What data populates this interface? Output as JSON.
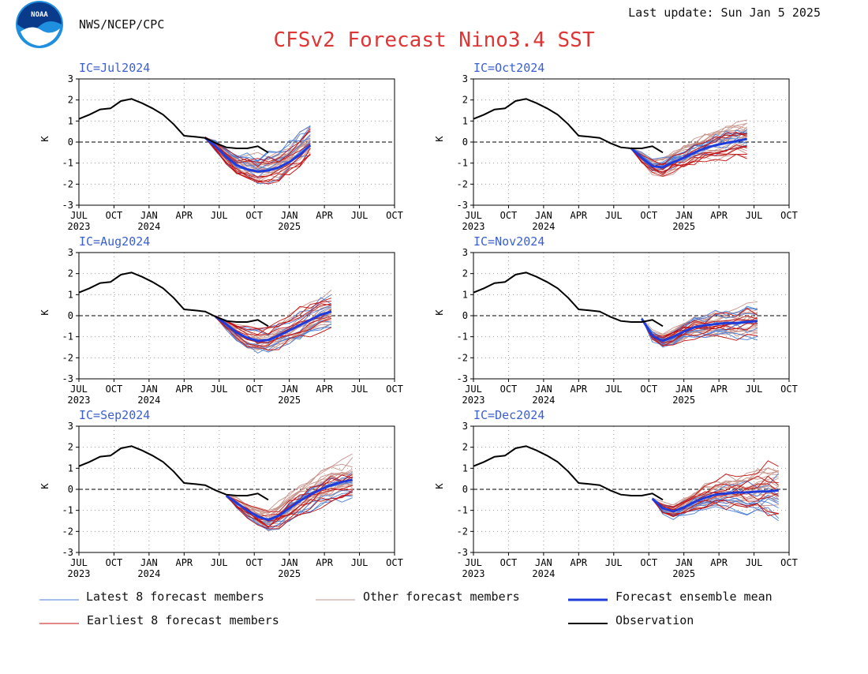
{
  "header": {
    "agency": "NWS/NCEP/CPC",
    "logo_text": "NOAA",
    "last_update": "Last update: Sun Jan 5 2025",
    "title": "CFSv2 Forecast Nino3.4 SST"
  },
  "colors": {
    "title": "#e03535",
    "ic_label": "#3a5fd0",
    "latest": "#4a7fd8",
    "other": "#c8948a",
    "earliest": "#c41010",
    "mean": "#1e3cdc",
    "observation": "#000000",
    "logo_blue": "#1f8fe0",
    "logo_dark": "#0a3a8a"
  },
  "legend": {
    "latest": "Latest 8 forecast members",
    "other": "Other forecast members",
    "mean": "Forecast ensemble mean",
    "earliest": "Earliest 8 forecast members",
    "observation": "Observation"
  },
  "chart_data": [
    {
      "type": "line",
      "ic_label": "IC=Jul2024",
      "ylabel": "K",
      "ylim": [
        -3,
        3
      ],
      "yticks": [
        "3",
        "2",
        "1",
        "0",
        "-1",
        "-2",
        "-3"
      ],
      "xticks": [
        "JUL",
        "OCT",
        "JAN",
        "APR",
        "JUL",
        "OCT",
        "JAN",
        "APR",
        "JUL",
        "OCT"
      ],
      "xyears": [
        {
          "index": 0,
          "label": "2023"
        },
        {
          "index": 2,
          "label": "2024"
        },
        {
          "index": 6,
          "label": "2025"
        }
      ],
      "grid": true,
      "observation": [
        [
          0,
          1.1
        ],
        [
          1,
          1.3
        ],
        [
          2,
          1.55
        ],
        [
          3,
          1.6
        ],
        [
          4,
          1.95
        ],
        [
          5,
          2.05
        ],
        [
          6,
          1.85
        ],
        [
          7,
          1.6
        ],
        [
          8,
          1.3
        ],
        [
          9,
          0.85
        ],
        [
          10,
          0.3
        ],
        [
          11,
          0.25
        ],
        [
          12,
          0.2
        ],
        [
          13,
          -0.05
        ],
        [
          14,
          -0.25
        ],
        [
          15,
          -0.3
        ],
        [
          16,
          -0.3
        ],
        [
          17,
          -0.2
        ],
        [
          18,
          -0.5
        ]
      ],
      "ensemble_mean": [
        [
          12,
          0.2
        ],
        [
          13,
          -0.2
        ],
        [
          14,
          -0.7
        ],
        [
          15,
          -1.1
        ],
        [
          16,
          -1.3
        ],
        [
          17,
          -1.4
        ],
        [
          18,
          -1.35
        ],
        [
          19,
          -1.2
        ],
        [
          20,
          -0.95
        ],
        [
          21,
          -0.6
        ],
        [
          22,
          -0.15
        ]
      ],
      "member_spread": [
        0.15,
        0.3,
        0.45,
        0.6,
        0.7,
        0.75,
        0.8,
        0.8,
        0.8,
        0.8,
        0.8
      ]
    },
    {
      "type": "line",
      "ic_label": "IC=Oct2024",
      "ylabel": "K",
      "ylim": [
        -3,
        3
      ],
      "yticks": [
        "3",
        "2",
        "1",
        "0",
        "-1",
        "-2",
        "-3"
      ],
      "xticks": [
        "JUL",
        "OCT",
        "JAN",
        "APR",
        "JUL",
        "OCT",
        "JAN",
        "APR",
        "JUL",
        "OCT"
      ],
      "xyears": [
        {
          "index": 0,
          "label": "2023"
        },
        {
          "index": 2,
          "label": "2024"
        },
        {
          "index": 6,
          "label": "2025"
        }
      ],
      "grid": true,
      "observation": [
        [
          0,
          1.1
        ],
        [
          1,
          1.3
        ],
        [
          2,
          1.55
        ],
        [
          3,
          1.6
        ],
        [
          4,
          1.95
        ],
        [
          5,
          2.05
        ],
        [
          6,
          1.85
        ],
        [
          7,
          1.6
        ],
        [
          8,
          1.3
        ],
        [
          9,
          0.85
        ],
        [
          10,
          0.3
        ],
        [
          11,
          0.25
        ],
        [
          12,
          0.2
        ],
        [
          13,
          -0.05
        ],
        [
          14,
          -0.25
        ],
        [
          15,
          -0.3
        ],
        [
          16,
          -0.3
        ],
        [
          17,
          -0.2
        ],
        [
          18,
          -0.5
        ]
      ],
      "ensemble_mean": [
        [
          15,
          -0.3
        ],
        [
          16,
          -0.75
        ],
        [
          17,
          -1.15
        ],
        [
          18,
          -1.2
        ],
        [
          19,
          -0.95
        ],
        [
          20,
          -0.75
        ],
        [
          21,
          -0.5
        ],
        [
          22,
          -0.3
        ],
        [
          23,
          -0.15
        ],
        [
          24,
          -0.05
        ],
        [
          25,
          0.05
        ],
        [
          26,
          0.15
        ]
      ],
      "member_spread": [
        0.15,
        0.3,
        0.45,
        0.55,
        0.6,
        0.65,
        0.7,
        0.75,
        0.8,
        0.85,
        0.9,
        0.95
      ]
    },
    {
      "type": "line",
      "ic_label": "IC=Aug2024",
      "ylabel": "K",
      "ylim": [
        -3,
        3
      ],
      "yticks": [
        "3",
        "2",
        "1",
        "0",
        "-1",
        "-2",
        "-3"
      ],
      "xticks": [
        "JUL",
        "OCT",
        "JAN",
        "APR",
        "JUL",
        "OCT",
        "JAN",
        "APR",
        "JUL",
        "OCT"
      ],
      "xyears": [
        {
          "index": 0,
          "label": "2023"
        },
        {
          "index": 2,
          "label": "2024"
        },
        {
          "index": 6,
          "label": "2025"
        }
      ],
      "grid": true,
      "observation": [
        [
          0,
          1.1
        ],
        [
          1,
          1.3
        ],
        [
          2,
          1.55
        ],
        [
          3,
          1.6
        ],
        [
          4,
          1.95
        ],
        [
          5,
          2.05
        ],
        [
          6,
          1.85
        ],
        [
          7,
          1.6
        ],
        [
          8,
          1.3
        ],
        [
          9,
          0.85
        ],
        [
          10,
          0.3
        ],
        [
          11,
          0.25
        ],
        [
          12,
          0.2
        ],
        [
          13,
          -0.05
        ],
        [
          14,
          -0.25
        ],
        [
          15,
          -0.3
        ],
        [
          16,
          -0.3
        ],
        [
          17,
          -0.2
        ],
        [
          18,
          -0.5
        ]
      ],
      "ensemble_mean": [
        [
          13,
          -0.05
        ],
        [
          14,
          -0.4
        ],
        [
          15,
          -0.8
        ],
        [
          16,
          -1.05
        ],
        [
          17,
          -1.2
        ],
        [
          18,
          -1.15
        ],
        [
          19,
          -0.95
        ],
        [
          20,
          -0.7
        ],
        [
          21,
          -0.45
        ],
        [
          22,
          -0.2
        ],
        [
          23,
          0.05
        ],
        [
          24,
          0.2
        ]
      ],
      "member_spread": [
        0.15,
        0.3,
        0.45,
        0.55,
        0.6,
        0.65,
        0.7,
        0.75,
        0.8,
        0.8,
        0.85,
        0.85
      ]
    },
    {
      "type": "line",
      "ic_label": "IC=Nov2024",
      "ylabel": "K",
      "ylim": [
        -3,
        3
      ],
      "yticks": [
        "3",
        "2",
        "1",
        "0",
        "-1",
        "-2",
        "-3"
      ],
      "xticks": [
        "JUL",
        "OCT",
        "JAN",
        "APR",
        "JUL",
        "OCT",
        "JAN",
        "APR",
        "JUL",
        "OCT"
      ],
      "xyears": [
        {
          "index": 0,
          "label": "2023"
        },
        {
          "index": 2,
          "label": "2024"
        },
        {
          "index": 6,
          "label": "2025"
        }
      ],
      "grid": true,
      "observation": [
        [
          0,
          1.1
        ],
        [
          1,
          1.3
        ],
        [
          2,
          1.55
        ],
        [
          3,
          1.6
        ],
        [
          4,
          1.95
        ],
        [
          5,
          2.05
        ],
        [
          6,
          1.85
        ],
        [
          7,
          1.6
        ],
        [
          8,
          1.3
        ],
        [
          9,
          0.85
        ],
        [
          10,
          0.3
        ],
        [
          11,
          0.25
        ],
        [
          12,
          0.2
        ],
        [
          13,
          -0.05
        ],
        [
          14,
          -0.25
        ],
        [
          15,
          -0.3
        ],
        [
          16,
          -0.3
        ],
        [
          17,
          -0.2
        ],
        [
          18,
          -0.5
        ]
      ],
      "ensemble_mean": [
        [
          16,
          -0.15
        ],
        [
          17,
          -0.95
        ],
        [
          18,
          -1.2
        ],
        [
          19,
          -1.0
        ],
        [
          20,
          -0.75
        ],
        [
          21,
          -0.55
        ],
        [
          22,
          -0.45
        ],
        [
          23,
          -0.4
        ],
        [
          24,
          -0.35
        ],
        [
          25,
          -0.35
        ],
        [
          26,
          -0.3
        ],
        [
          27,
          -0.25
        ]
      ],
      "member_spread": [
        0.15,
        0.3,
        0.4,
        0.5,
        0.55,
        0.6,
        0.65,
        0.7,
        0.75,
        0.8,
        0.85,
        0.9
      ]
    },
    {
      "type": "line",
      "ic_label": "IC=Sep2024",
      "ylabel": "K",
      "ylim": [
        -3,
        3
      ],
      "yticks": [
        "3",
        "2",
        "1",
        "0",
        "-1",
        "-2",
        "-3"
      ],
      "xticks": [
        "JUL",
        "OCT",
        "JAN",
        "APR",
        "JUL",
        "OCT",
        "JAN",
        "APR",
        "JUL",
        "OCT"
      ],
      "xyears": [
        {
          "index": 0,
          "label": "2023"
        },
        {
          "index": 2,
          "label": "2024"
        },
        {
          "index": 6,
          "label": "2025"
        }
      ],
      "grid": true,
      "observation": [
        [
          0,
          1.1
        ],
        [
          1,
          1.3
        ],
        [
          2,
          1.55
        ],
        [
          3,
          1.6
        ],
        [
          4,
          1.95
        ],
        [
          5,
          2.05
        ],
        [
          6,
          1.85
        ],
        [
          7,
          1.6
        ],
        [
          8,
          1.3
        ],
        [
          9,
          0.85
        ],
        [
          10,
          0.3
        ],
        [
          11,
          0.25
        ],
        [
          12,
          0.2
        ],
        [
          13,
          -0.05
        ],
        [
          14,
          -0.25
        ],
        [
          15,
          -0.3
        ],
        [
          16,
          -0.3
        ],
        [
          17,
          -0.2
        ],
        [
          18,
          -0.5
        ]
      ],
      "ensemble_mean": [
        [
          14,
          -0.3
        ],
        [
          15,
          -0.65
        ],
        [
          16,
          -1.0
        ],
        [
          17,
          -1.3
        ],
        [
          18,
          -1.45
        ],
        [
          19,
          -1.25
        ],
        [
          20,
          -0.9
        ],
        [
          21,
          -0.55
        ],
        [
          22,
          -0.25
        ],
        [
          23,
          0.0
        ],
        [
          24,
          0.2
        ],
        [
          25,
          0.35
        ],
        [
          26,
          0.45
        ]
      ],
      "member_spread": [
        0.15,
        0.3,
        0.4,
        0.5,
        0.6,
        0.65,
        0.7,
        0.75,
        0.8,
        0.8,
        0.85,
        0.85,
        0.9
      ]
    },
    {
      "type": "line",
      "ic_label": "IC=Dec2024",
      "ylabel": "K",
      "ylim": [
        -3,
        3
      ],
      "yticks": [
        "3",
        "2",
        "1",
        "0",
        "-1",
        "-2",
        "-3"
      ],
      "xticks": [
        "JUL",
        "OCT",
        "JAN",
        "APR",
        "JUL",
        "OCT",
        "JAN",
        "APR",
        "JUL",
        "OCT"
      ],
      "xyears": [
        {
          "index": 0,
          "label": "2023"
        },
        {
          "index": 2,
          "label": "2024"
        },
        {
          "index": 6,
          "label": "2025"
        }
      ],
      "grid": true,
      "observation": [
        [
          0,
          1.1
        ],
        [
          1,
          1.3
        ],
        [
          2,
          1.55
        ],
        [
          3,
          1.6
        ],
        [
          4,
          1.95
        ],
        [
          5,
          2.05
        ],
        [
          6,
          1.85
        ],
        [
          7,
          1.6
        ],
        [
          8,
          1.3
        ],
        [
          9,
          0.85
        ],
        [
          10,
          0.3
        ],
        [
          11,
          0.25
        ],
        [
          12,
          0.2
        ],
        [
          13,
          -0.05
        ],
        [
          14,
          -0.25
        ],
        [
          15,
          -0.3
        ],
        [
          16,
          -0.3
        ],
        [
          17,
          -0.2
        ],
        [
          18,
          -0.5
        ]
      ],
      "ensemble_mean": [
        [
          17,
          -0.45
        ],
        [
          18,
          -0.9
        ],
        [
          19,
          -1.05
        ],
        [
          20,
          -0.85
        ],
        [
          21,
          -0.6
        ],
        [
          22,
          -0.4
        ],
        [
          23,
          -0.25
        ],
        [
          24,
          -0.2
        ],
        [
          25,
          -0.15
        ],
        [
          26,
          -0.15
        ],
        [
          27,
          -0.1
        ],
        [
          28,
          -0.1
        ],
        [
          29,
          -0.05
        ]
      ],
      "member_spread": [
        0.15,
        0.3,
        0.4,
        0.5,
        0.55,
        0.65,
        0.75,
        0.8,
        0.85,
        0.95,
        1.05,
        1.15,
        1.25
      ]
    }
  ]
}
